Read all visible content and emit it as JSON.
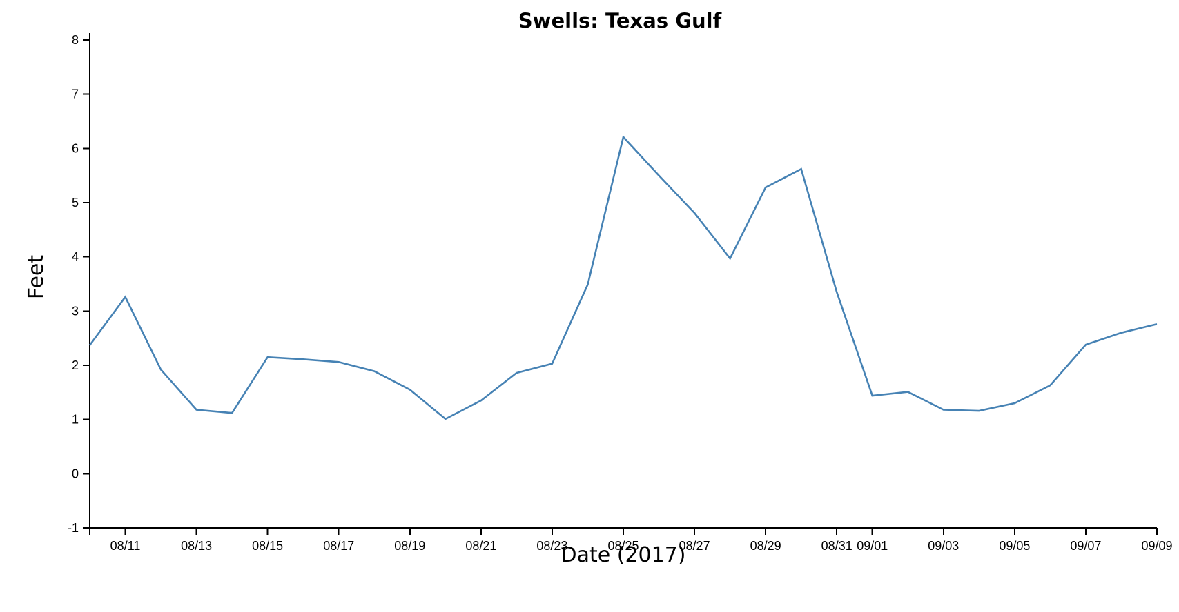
{
  "chart_data": {
    "type": "line",
    "title": "Swells: Texas Gulf",
    "xlabel": "Date (2017)",
    "ylabel": "Feet",
    "x_type": "date",
    "xlim": [
      "2017-08-10",
      "2017-09-09"
    ],
    "ylim": [
      -1,
      8
    ],
    "y_ticks": [
      -1,
      0,
      1,
      2,
      3,
      4,
      5,
      6,
      7,
      8
    ],
    "x_ticks": [
      {
        "date": "2017-08-11",
        "label": "08/11"
      },
      {
        "date": "2017-08-13",
        "label": "08/13"
      },
      {
        "date": "2017-08-15",
        "label": "08/15"
      },
      {
        "date": "2017-08-17",
        "label": "08/17"
      },
      {
        "date": "2017-08-19",
        "label": "08/19"
      },
      {
        "date": "2017-08-21",
        "label": "08/21"
      },
      {
        "date": "2017-08-23",
        "label": "08/23"
      },
      {
        "date": "2017-08-25",
        "label": "08/25"
      },
      {
        "date": "2017-08-27",
        "label": "08/27"
      },
      {
        "date": "2017-08-29",
        "label": "08/29"
      },
      {
        "date": "2017-08-31",
        "label": "08/31"
      },
      {
        "date": "2017-09-01",
        "label": "09/01"
      },
      {
        "date": "2017-09-03",
        "label": "09/03"
      },
      {
        "date": "2017-09-05",
        "label": "09/05"
      },
      {
        "date": "2017-09-07",
        "label": "09/07"
      },
      {
        "date": "2017-09-09",
        "label": "09/09"
      }
    ],
    "grid": false,
    "series": [
      {
        "color": "#4682b4",
        "x": [
          "2017-08-10",
          "2017-08-11",
          "2017-08-12",
          "2017-08-13",
          "2017-08-14",
          "2017-08-15",
          "2017-08-16",
          "2017-08-17",
          "2017-08-18",
          "2017-08-19",
          "2017-08-20",
          "2017-08-21",
          "2017-08-22",
          "2017-08-23",
          "2017-08-24",
          "2017-08-25",
          "2017-08-26",
          "2017-08-27",
          "2017-08-28",
          "2017-08-29",
          "2017-08-30",
          "2017-08-31",
          "2017-09-01",
          "2017-09-02",
          "2017-09-03",
          "2017-09-04",
          "2017-09-05",
          "2017-09-06",
          "2017-09-07",
          "2017-09-08",
          "2017-09-09"
        ],
        "values": [
          2.37,
          3.26,
          1.92,
          1.18,
          1.12,
          2.15,
          2.11,
          2.06,
          1.89,
          1.55,
          1.01,
          1.35,
          1.86,
          2.03,
          3.49,
          6.21,
          5.5,
          4.81,
          3.97,
          5.28,
          5.62,
          3.35,
          1.44,
          1.51,
          1.18,
          1.16,
          1.3,
          1.63,
          2.38,
          2.6,
          2.76
        ]
      }
    ]
  }
}
